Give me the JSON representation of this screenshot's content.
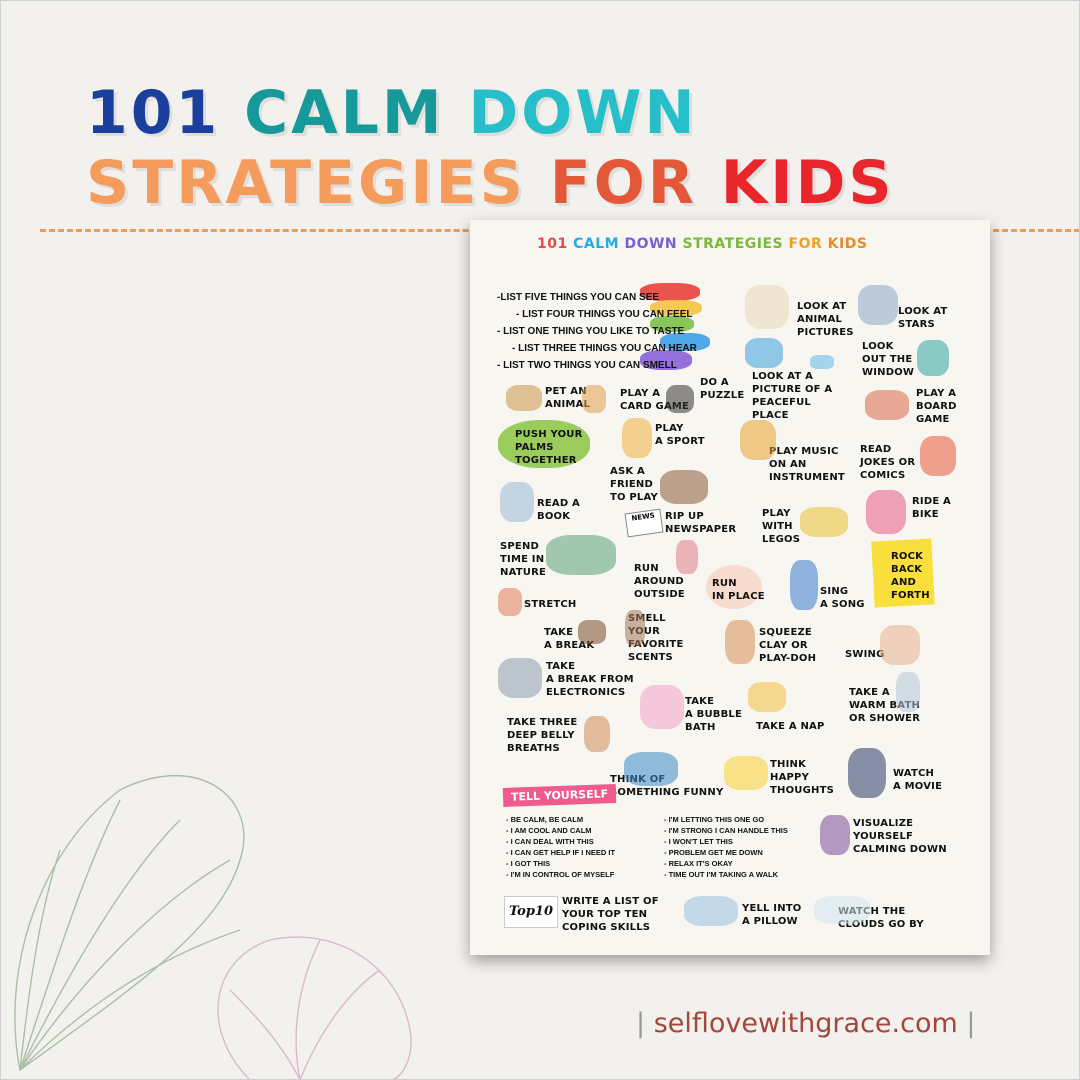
{
  "heading": {
    "line1": [
      {
        "text": "101",
        "color": "#1b3f9c"
      },
      {
        "text": " CALM",
        "color": "#17999a"
      },
      {
        "text": " DOWN",
        "color": "#26bfc9"
      }
    ],
    "line2": [
      {
        "text": "STRATEGIES",
        "color": "#f59b5b"
      },
      {
        "text": " FOR",
        "color": "#e4583a"
      },
      {
        "text": " KIDS",
        "color": "#e8262b"
      }
    ]
  },
  "poster": {
    "title": [
      {
        "text": "101 ",
        "color": "#e84a4a"
      },
      {
        "text": "CALM ",
        "color": "#2aa8e0"
      },
      {
        "text": "DOWN ",
        "color": "#7a5fd0"
      },
      {
        "text": "STRATEGIES ",
        "color": "#7ab83a"
      },
      {
        "text": "FOR ",
        "color": "#f0a020"
      },
      {
        "text": "KIDS",
        "color": "#e88a2a"
      }
    ],
    "senses": [
      "-LIST FIVE THINGS YOU CAN SEE",
      "- LIST FOUR THINGS YOU CAN FEEL",
      "- LIST ONE THING YOU LIKE TO TASTE",
      "- LIST THREE THINGS YOU CAN HEAR",
      "- LIST TWO THINGS YOU CAN SMELL"
    ],
    "strategies": [
      "DO A\nPUZZLE",
      "LOOK AT\nANIMAL\nPICTURES",
      "LOOK AT\nSTARS",
      "LOOK\nOUT THE\nWINDOW",
      "LOOK AT A\nPICTURE OF A\nPEACEFUL\nPLACE",
      "PET AN\nANIMAL",
      "PLAY A\nCARD GAME",
      "PLAY A\nBOARD\nGAME",
      "PUSH YOUR\nPALMS\nTOGETHER",
      "PLAY\nA SPORT",
      "PLAY MUSIC\nON AN\nINSTRUMENT",
      "READ\nJOKES OR\nCOMICS",
      "ASK A\nFRIEND\nTO PLAY",
      "READ A\nBOOK",
      "RIP UP\nNEWSPAPER",
      "PLAY\nWITH\nLEGOS",
      "RIDE A\nBIKE",
      "SPEND\nTIME IN\nNATURE",
      "RUN\nAROUND\nOUTSIDE",
      "RUN\nIN PLACE",
      "SING\nA SONG",
      "ROCK\nBACK\nAND\nFORTH",
      "STRETCH",
      "TAKE\nA BREAK",
      "SMELL\nYOUR\nFAVORITE\nSCENTS",
      "SQUEEZE\nCLAY OR\nPLAY-DOH",
      "SWING",
      "TAKE\nA BREAK FROM\nELECTRONICS",
      "TAKE\nA BUBBLE\nBATH",
      "TAKE A\nWARM BATH\nOR SHOWER",
      "TAKE A NAP",
      "TAKE THREE\nDEEP BELLY\nBREATHS",
      "THINK OF\nSOMETHING FUNNY",
      "THINK\nHAPPY\nTHOUGHTS",
      "WATCH\nA MOVIE",
      "VISUALIZE\nYOURSELF\nCALMING DOWN",
      "WRITE A LIST OF\nYOUR TOP TEN\nCOPING SKILLS",
      "YELL INTO\nA PILLOW",
      "WATCH THE\nCLOUDS GO BY"
    ],
    "tell_yourself": {
      "label": "TELL YOURSELF",
      "left": "- BE CALM, BE CALM\n-  I AM COOL AND CALM\n- I CAN DEAL WITH THIS\n- I CAN GET HELP IF I NEED IT\n-  I GOT THIS\n- I'M IN CONTROL OF MYSELF",
      "right": "- I'M LETTING THIS ONE GO\n- I'M STRONG I CAN HANDLE THIS\n- I WON'T LET THIS\n- PROBLEM GET ME DOWN\n- RELAX IT'S OKAY\n- TIME OUT I'M TAKING A WALK"
    },
    "top10_badge": "Top10",
    "news_badge": "NEWS"
  },
  "footer": {
    "bar_left": "|",
    "site": "selflovewithgrace.com",
    "bar_right": "|"
  },
  "colors": {
    "background": "#f3f1ee",
    "dash": "#f09a52",
    "footer": "#a4463c"
  }
}
